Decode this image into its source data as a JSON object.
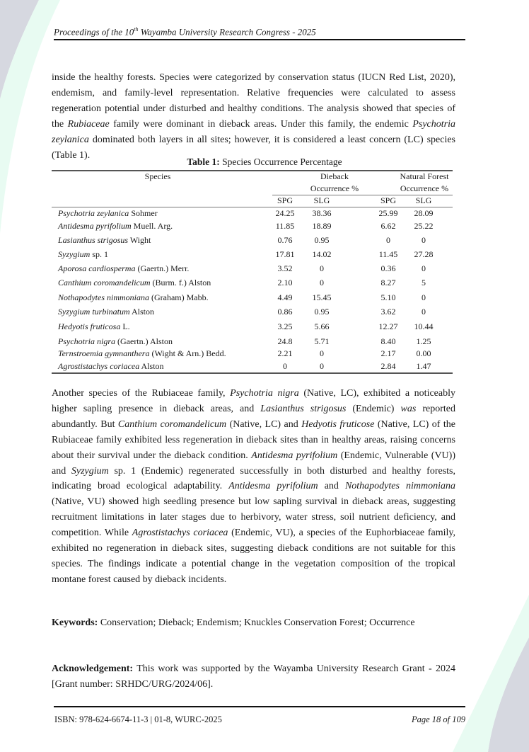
{
  "header": {
    "prefix": "Proceedings of the 10",
    "sup": "th",
    "suffix": " Wayamba University Research Congress - 2025"
  },
  "para1": [
    {
      "t": "inside the healthy forests. Species were categorized by conservation status (IUCN Red List, 2020), endemism, and family-level representation. Relative frequencies were calculated to assess regeneration potential under disturbed and healthy conditions. The analysis showed that species of the "
    },
    {
      "t": "Rubiaceae",
      "i": true
    },
    {
      "t": " family were dominant in dieback areas. Under this family, the endemic "
    },
    {
      "t": "Psychotria zeylanica",
      "i": true
    },
    {
      "t": " dominated both layers in all sites; however, it is considered a least concern (LC) species (Table 1)."
    }
  ],
  "table": {
    "caption_label": "Table 1:",
    "caption_text": " Species Occurrence Percentage",
    "col_species": "Species",
    "group1_a": "Dieback",
    "group1_b": "Occurrence %",
    "group2_a": "Natural Forest",
    "group2_b": "Occurrence %",
    "sub": [
      "SPG",
      "SLG",
      "SPG",
      "SLG"
    ],
    "rows": [
      {
        "name": "Psychotria zeylanica",
        "auth": " Sohmer",
        "v": [
          "24.25",
          "38.36",
          "25.99",
          "28.09"
        ]
      },
      {
        "name": "Antidesma pyrifolium",
        "auth": " Muell. Arg.",
        "v": [
          "11.85",
          "18.89",
          "6.62",
          "25.22"
        ]
      },
      {
        "name": "Lasianthus strigosus",
        "auth": " Wight",
        "v": [
          "0.76",
          "0.95",
          "0",
          "0"
        ]
      },
      {
        "name": "Syzygium",
        "auth": " sp. 1",
        "v": [
          "17.81",
          "14.02",
          "11.45",
          "27.28"
        ]
      },
      {
        "name": "Aporosa cardiosperma",
        "auth": " (Gaertn.) Merr.",
        "v": [
          "3.52",
          "0",
          "0.36",
          "0"
        ]
      },
      {
        "name": "Canthium coromandelicum",
        "auth": " (Burm. f.) Alston",
        "v": [
          "2.10",
          "0",
          "8.27",
          "5"
        ]
      },
      {
        "name": "Nothapodytes nimmoniana",
        "auth": " (Graham) Mabb.",
        "v": [
          "4.49",
          "15.45",
          "5.10",
          "0"
        ]
      },
      {
        "name": "Syzygium turbinatum",
        "auth": " Alston",
        "v": [
          "0.86",
          "0.95",
          "3.62",
          "0"
        ]
      },
      {
        "name": "Hedyotis fruticosa",
        "auth": " L.",
        "v": [
          "3.25",
          "5.66",
          "12.27",
          "10.44"
        ]
      },
      {
        "name": "Psychotria nigra",
        "auth": " (Gaertn.) Alston",
        "v": [
          "24.8",
          "5.71",
          "8.40",
          "1.25"
        ]
      },
      {
        "name": "Ternstroemia gymnanthera",
        "auth": " (Wight & Arn.) Bedd.",
        "v": [
          "2.21",
          "0",
          "2.17",
          "0.00"
        ]
      },
      {
        "name": "Agrostistachys coriacea",
        "auth": " Alston",
        "v": [
          "0",
          "0",
          "2.84",
          "1.47"
        ]
      }
    ]
  },
  "para2": [
    {
      "t": "Another species of the Rubiaceae family, "
    },
    {
      "t": "Psychotria nigra",
      "i": true
    },
    {
      "t": " (Native, LC), exhibited a noticeably higher sapling presence in dieback areas, and "
    },
    {
      "t": "Lasianthus strigosus",
      "i": true
    },
    {
      "t": " (Endemic) "
    },
    {
      "t": "was",
      "i": true
    },
    {
      "t": " reported abundantly. But "
    },
    {
      "t": "Canthium coromandelicum",
      "i": true
    },
    {
      "t": " (Native, LC) and "
    },
    {
      "t": "Hedyotis fruticose",
      "i": true
    },
    {
      "t": " (Native, LC) of the Rubiaceae family exhibited less regeneration in dieback sites than in healthy areas, raising concerns about their survival under the dieback condition. "
    },
    {
      "t": "Antidesma pyrifolium",
      "i": true
    },
    {
      "t": " (Endemic, Vulnerable (VU)) and "
    },
    {
      "t": "Syzygium",
      "i": true
    },
    {
      "t": " sp. 1 (Endemic) regenerated successfully in both disturbed and healthy forests, indicating broad ecological adaptability. "
    },
    {
      "t": "Antidesma pyrifolium",
      "i": true
    },
    {
      "t": " and "
    },
    {
      "t": "Nothapodytes nimmoniana",
      "i": true
    },
    {
      "t": " (Native, VU) showed high seedling presence but low sapling survival in dieback areas, suggesting recruitment limitations in later stages due to herbivory, water stress, soil nutrient deficiency, and competition. While "
    },
    {
      "t": "Agrostistachys coriacea",
      "i": true
    },
    {
      "t": " (Endemic, VU), a species of the Euphorbiaceae family, exhibited no regeneration in dieback sites, suggesting dieback conditions are not suitable for this species. The findings indicate a potential change in the vegetation composition of the tropical montane forest caused by dieback incidents."
    }
  ],
  "keywords": {
    "label": "Keywords:",
    "text": " Conservation; Dieback; Endemism; Knuckles Conservation Forest; Occurrence"
  },
  "ack": {
    "label": "Acknowledgement:",
    "text": " This work was supported by the Wayamba University Research Grant - 2024 [Grant number: SRHDC/URG/2024/06]."
  },
  "footer": {
    "isbn": "ISBN: 978-624-6674-11-3 | 01-8, WURC-2025",
    "page": "Page 18 of 109"
  },
  "colors": {
    "deco_grey": "#d6d8e0",
    "deco_mint": "#e6fbf1"
  }
}
